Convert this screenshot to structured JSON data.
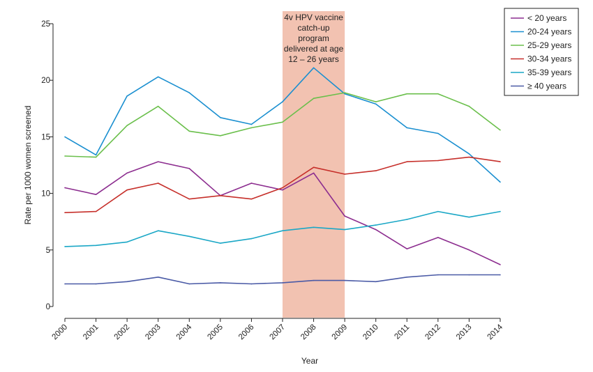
{
  "chart_data": {
    "type": "line",
    "title": "",
    "xlabel": "Year",
    "ylabel": "Rate per 1000 women  screened",
    "ylim": [
      0,
      25
    ],
    "yticks": [
      0,
      5,
      10,
      15,
      20,
      25
    ],
    "grid": false,
    "legend_position": "top-right",
    "x": [
      2000,
      2001,
      2002,
      2003,
      2004,
      2005,
      2006,
      2007,
      2008,
      2009,
      2010,
      2011,
      2012,
      2013,
      2014
    ],
    "x_tick_labels": [
      "2000",
      "2001",
      "2002",
      "2003",
      "2004",
      "2005",
      "2006",
      "2007",
      "2008",
      "2009",
      "2010",
      "2011",
      "2012",
      "2013",
      "2014"
    ],
    "shaded_region": {
      "x_start": 2007,
      "x_end": 2009,
      "color": "#f2c2b1",
      "label_lines": [
        "4v HPV vaccine",
        "catch-up",
        "program",
        "delivered at age",
        "12 – 26 years"
      ]
    },
    "series": [
      {
        "name": "< 20 years",
        "color": "#8c2d8f",
        "values": [
          10.5,
          9.9,
          11.8,
          12.8,
          12.2,
          9.8,
          10.9,
          10.3,
          11.8,
          8.0,
          6.8,
          5.1,
          6.1,
          5.0,
          3.7
        ]
      },
      {
        "name": "20-24 years",
        "color": "#1a8fd0",
        "values": [
          15.0,
          13.4,
          18.6,
          20.3,
          18.9,
          16.7,
          16.1,
          18.1,
          21.1,
          18.8,
          17.9,
          15.8,
          15.3,
          13.5,
          11.0
        ]
      },
      {
        "name": "25-29 years",
        "color": "#6abf4b",
        "values": [
          13.3,
          13.2,
          16.0,
          17.7,
          15.5,
          15.1,
          15.8,
          16.3,
          18.4,
          18.9,
          18.1,
          18.8,
          18.8,
          17.7,
          15.6
        ]
      },
      {
        "name": "30-34 years",
        "color": "#c62f2a",
        "values": [
          8.3,
          8.4,
          10.3,
          10.9,
          9.5,
          9.8,
          9.5,
          10.5,
          12.3,
          11.7,
          12.0,
          12.8,
          12.9,
          13.2,
          12.8
        ]
      },
      {
        "name": "35-39 years",
        "color": "#1aa7c6",
        "values": [
          5.3,
          5.4,
          5.7,
          6.7,
          6.2,
          5.6,
          6.0,
          6.7,
          7.0,
          6.8,
          7.2,
          7.7,
          8.4,
          7.9,
          8.4
        ]
      },
      {
        "name": "≥ 40 years",
        "color": "#4a5aa6",
        "values": [
          2.0,
          2.0,
          2.2,
          2.6,
          2.0,
          2.1,
          2.0,
          2.1,
          2.3,
          2.3,
          2.2,
          2.6,
          2.8,
          2.8,
          2.8
        ]
      }
    ]
  }
}
